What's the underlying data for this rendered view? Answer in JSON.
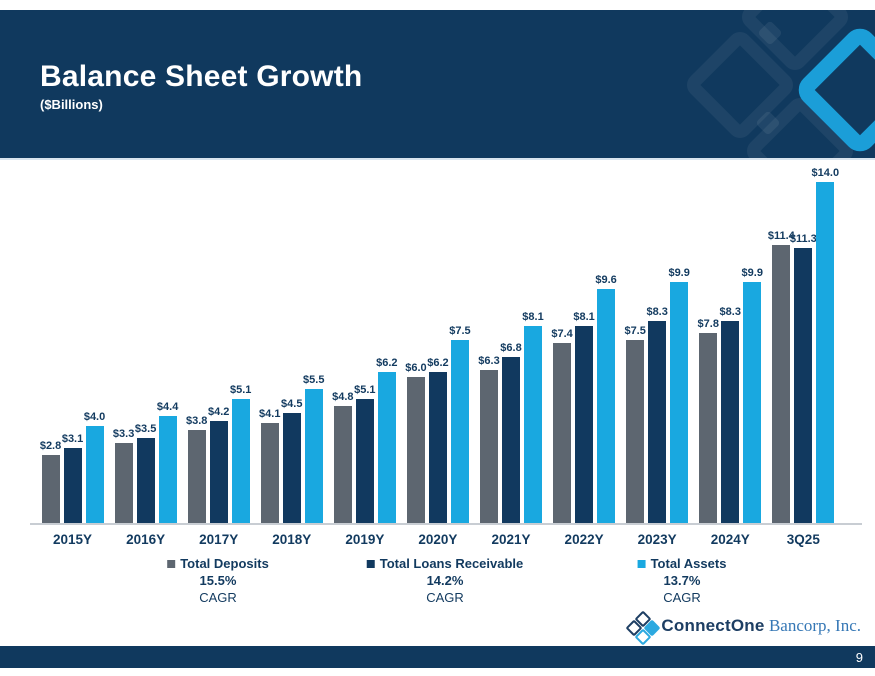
{
  "header": {
    "title": "Balance Sheet Growth",
    "subtitle": "($Billions)"
  },
  "chart_data": {
    "type": "bar",
    "title": "Balance Sheet Growth",
    "units": "$Billions",
    "value_prefix": "$",
    "categories": [
      "2015Y",
      "2016Y",
      "2017Y",
      "2018Y",
      "2019Y",
      "2020Y",
      "2021Y",
      "2022Y",
      "2023Y",
      "2024Y",
      "3Q25"
    ],
    "series": [
      {
        "name": "Total Deposits",
        "cagr": "15.5%",
        "color": "#5d6670",
        "values": [
          2.8,
          3.3,
          3.8,
          4.1,
          4.8,
          6.0,
          6.3,
          7.4,
          7.5,
          7.8,
          11.4
        ]
      },
      {
        "name": "Total Loans Receivable",
        "cagr": "14.2%",
        "color": "#11395f",
        "values": [
          3.1,
          3.5,
          4.2,
          4.5,
          5.1,
          6.2,
          6.8,
          8.1,
          8.3,
          8.3,
          11.3
        ]
      },
      {
        "name": "Total Assets",
        "cagr": "13.7%",
        "color": "#19a8e0",
        "values": [
          4.0,
          4.4,
          5.1,
          5.5,
          6.2,
          7.5,
          8.1,
          9.6,
          9.9,
          9.9,
          14.0
        ]
      }
    ],
    "ylim": [
      0,
      14
    ],
    "grid": false,
    "legend_position": "bottom"
  },
  "legend": {
    "cagr_label": "CAGR"
  },
  "branding": {
    "logo_name": "ConnectOne",
    "logo_suffix": "Bancorp, Inc."
  },
  "footer": {
    "page_number": "9"
  },
  "colors": {
    "header_bg": "#10395e",
    "text_navy": "#123a5f",
    "bar_gray": "#5d6670",
    "bar_navy": "#11395f",
    "bar_blue": "#19a8e0",
    "deco_blue": "#1b9ed8"
  }
}
